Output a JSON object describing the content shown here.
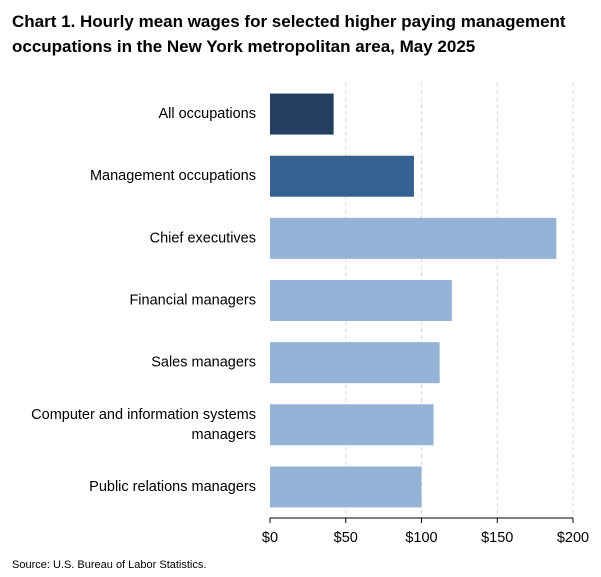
{
  "chart_data": {
    "type": "bar",
    "orientation": "horizontal",
    "title": "Chart 1. Hourly mean wages for selected higher paying management occupations in the New York metropolitan area, May 2025",
    "categories": [
      "All occupations",
      "Management occupations",
      "Chief executives",
      "Financial managers",
      "Sales managers",
      "Computer and information systems managers",
      "Public relations managers"
    ],
    "category_label_lines": [
      [
        "All occupations"
      ],
      [
        "Management occupations"
      ],
      [
        "Chief executives"
      ],
      [
        "Financial managers"
      ],
      [
        "Sales managers"
      ],
      [
        "Computer and information systems",
        "managers"
      ],
      [
        "Public relations managers"
      ]
    ],
    "values": [
      42,
      95,
      189,
      120,
      112,
      108,
      100
    ],
    "bar_colors": [
      "#243f60",
      "#376092",
      "#95b3d7",
      "#95b3d7",
      "#95b3d7",
      "#95b3d7",
      "#95b3d7"
    ],
    "xlim": [
      0,
      200
    ],
    "x_ticks": [
      0,
      50,
      100,
      150,
      200
    ],
    "x_tick_labels": [
      "$0",
      "$50",
      "$100",
      "$150",
      "$200"
    ],
    "grid": "vertical-dashed",
    "source": "Source: U.S. Bureau of Labor Statistics."
  }
}
